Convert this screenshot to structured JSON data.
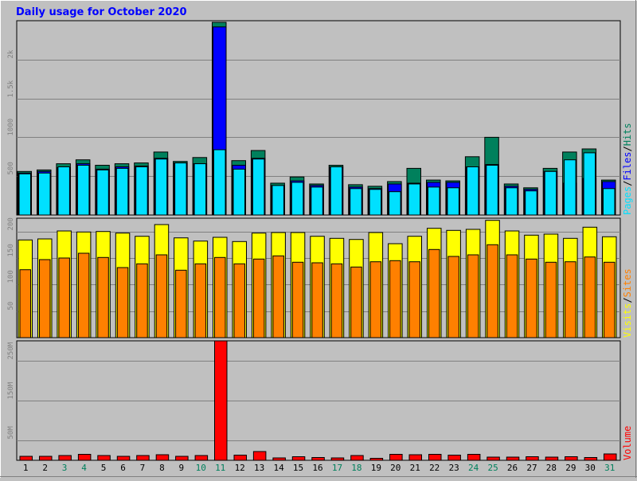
{
  "title": "Daily usage for October 2020",
  "colors": {
    "hits": "#00805c",
    "files": "#0000ff",
    "pages": "#00e0ff",
    "visits": "#ffff00",
    "sites": "#ff8000",
    "volume": "#ff0000",
    "title": "#0000ff",
    "weekend": "#00805c",
    "panel_bg": "#c0c0c0",
    "grid": "#808080"
  },
  "chart_data": [
    {
      "type": "bar",
      "title": "Daily usage for October 2020",
      "legend": [
        "Pages",
        "Files",
        "Hits"
      ],
      "legend_placement": "right",
      "yticks": [
        "500",
        "1000",
        "1.5k",
        "2k"
      ],
      "ylim": [
        0,
        2500
      ],
      "grid": true,
      "categories": [
        "1",
        "2",
        "3",
        "4",
        "5",
        "6",
        "7",
        "8",
        "9",
        "10",
        "11",
        "12",
        "13",
        "14",
        "15",
        "16",
        "17",
        "18",
        "19",
        "20",
        "21",
        "22",
        "23",
        "24",
        "25",
        "26",
        "27",
        "28",
        "29",
        "30",
        "31"
      ],
      "series": [
        {
          "name": "Hits",
          "values": [
            560,
            580,
            660,
            710,
            640,
            660,
            670,
            810,
            690,
            740,
            2480,
            700,
            830,
            410,
            490,
            400,
            640,
            390,
            370,
            430,
            600,
            450,
            440,
            750,
            1000,
            400,
            350,
            600,
            810,
            850,
            450
          ]
        },
        {
          "name": "Files",
          "values": [
            540,
            560,
            610,
            660,
            590,
            620,
            630,
            730,
            670,
            660,
            2420,
            640,
            730,
            380,
            440,
            380,
            620,
            360,
            340,
            400,
            410,
            420,
            420,
            620,
            650,
            370,
            330,
            560,
            410,
            470,
            430
          ]
        },
        {
          "name": "Pages",
          "values": [
            530,
            540,
            620,
            640,
            580,
            600,
            620,
            720,
            670,
            660,
            840,
            590,
            720,
            380,
            420,
            360,
            620,
            340,
            330,
            300,
            400,
            360,
            350,
            620,
            640,
            350,
            310,
            560,
            710,
            800,
            340
          ]
        }
      ]
    },
    {
      "type": "bar",
      "legend": [
        "Visits",
        "Sites"
      ],
      "legend_placement": "right",
      "yticks": [
        "50",
        "100",
        "150",
        "200"
      ],
      "ylim": [
        0,
        225
      ],
      "grid": true,
      "categories": [
        "1",
        "2",
        "3",
        "4",
        "5",
        "6",
        "7",
        "8",
        "9",
        "10",
        "11",
        "12",
        "13",
        "14",
        "15",
        "16",
        "17",
        "18",
        "19",
        "20",
        "21",
        "22",
        "23",
        "24",
        "25",
        "26",
        "27",
        "28",
        "29",
        "30",
        "31"
      ],
      "series": [
        {
          "name": "Visits",
          "values": [
            184,
            186,
            201,
            199,
            200,
            197,
            191,
            213,
            188,
            182,
            189,
            181,
            197,
            198,
            198,
            191,
            187,
            185,
            198,
            177,
            191,
            206,
            202,
            204,
            221,
            201,
            193,
            195,
            187,
            208,
            190
          ]
        },
        {
          "name": "Sites",
          "values": [
            128,
            147,
            150,
            159,
            151,
            132,
            139,
            156,
            127,
            139,
            151,
            139,
            148,
            154,
            142,
            141,
            139,
            133,
            143,
            145,
            143,
            166,
            153,
            156,
            175,
            156,
            148,
            142,
            143,
            152,
            142
          ]
        }
      ]
    },
    {
      "type": "bar",
      "legend": [
        "Volume"
      ],
      "legend_placement": "right",
      "yticks": [
        "50M",
        "150M",
        "250M"
      ],
      "ylim": [
        0,
        300
      ],
      "grid": true,
      "categories": [
        "1",
        "2",
        "3",
        "4",
        "5",
        "6",
        "7",
        "8",
        "9",
        "10",
        "11",
        "12",
        "13",
        "14",
        "15",
        "16",
        "17",
        "18",
        "19",
        "20",
        "21",
        "22",
        "23",
        "24",
        "25",
        "26",
        "27",
        "28",
        "29",
        "30",
        "31"
      ],
      "weekend_days": [
        "3",
        "4",
        "10",
        "11",
        "17",
        "18",
        "24",
        "25",
        "31"
      ],
      "series": [
        {
          "name": "Volume",
          "values": [
            10,
            10,
            12,
            15,
            12,
            10,
            12,
            14,
            10,
            12,
            300,
            13,
            22,
            6,
            9,
            7,
            6,
            12,
            5,
            15,
            14,
            15,
            13,
            15,
            8,
            8,
            9,
            8,
            9,
            7,
            16
          ]
        }
      ]
    }
  ]
}
